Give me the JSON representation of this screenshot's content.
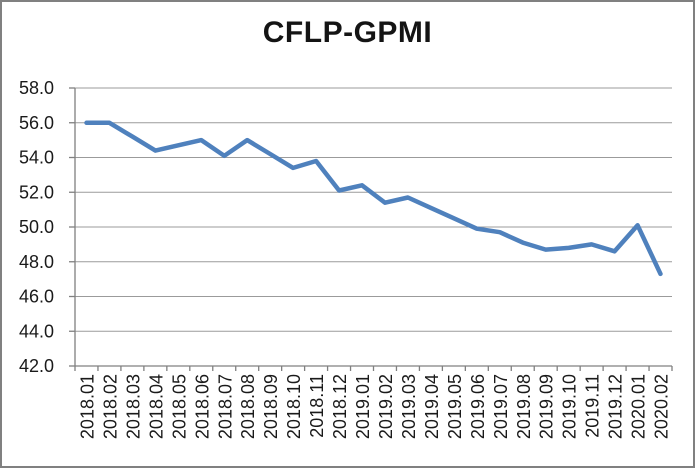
{
  "frame": {
    "border_color": "#808080",
    "background": "#ffffff"
  },
  "chart_data": {
    "type": "line",
    "title": "CFLP-GPMI",
    "categories": [
      "2018.01",
      "2018.02",
      "2018.03",
      "2018.04",
      "2018.05",
      "2018.06",
      "2018.07",
      "2018.08",
      "2018.09",
      "2018.10",
      "2018.11",
      "2018.12",
      "2019.01",
      "2019.02",
      "2019.03",
      "2019.04",
      "2019.05",
      "2019.06",
      "2019.07",
      "2019.08",
      "2019.09",
      "2019.10",
      "2019.11",
      "2019.12",
      "2020.01",
      "2020.02"
    ],
    "series": [
      {
        "name": "CFLP-GPMI",
        "color": "#4F81BD",
        "values": [
          56.0,
          56.0,
          55.2,
          54.4,
          54.7,
          55.0,
          54.1,
          55.0,
          54.2,
          53.4,
          53.8,
          52.1,
          52.4,
          51.4,
          51.7,
          51.1,
          50.5,
          49.9,
          49.7,
          49.1,
          48.7,
          48.8,
          49.0,
          48.6,
          50.1,
          47.3
        ]
      }
    ],
    "xlabel": "",
    "ylabel": "",
    "ylim": [
      42.0,
      58.0
    ],
    "ytick_step": 2.0,
    "ytick_labels": [
      "58.0",
      "56.0",
      "54.0",
      "52.0",
      "50.0",
      "48.0",
      "46.0",
      "44.0",
      "42.0"
    ],
    "grid": true,
    "legend": "none",
    "axis_color": "#808080",
    "gridline_color": "#9B9B9B",
    "tick_label_color": "#1a1a1a",
    "x_labels_rotation_deg": -90
  }
}
